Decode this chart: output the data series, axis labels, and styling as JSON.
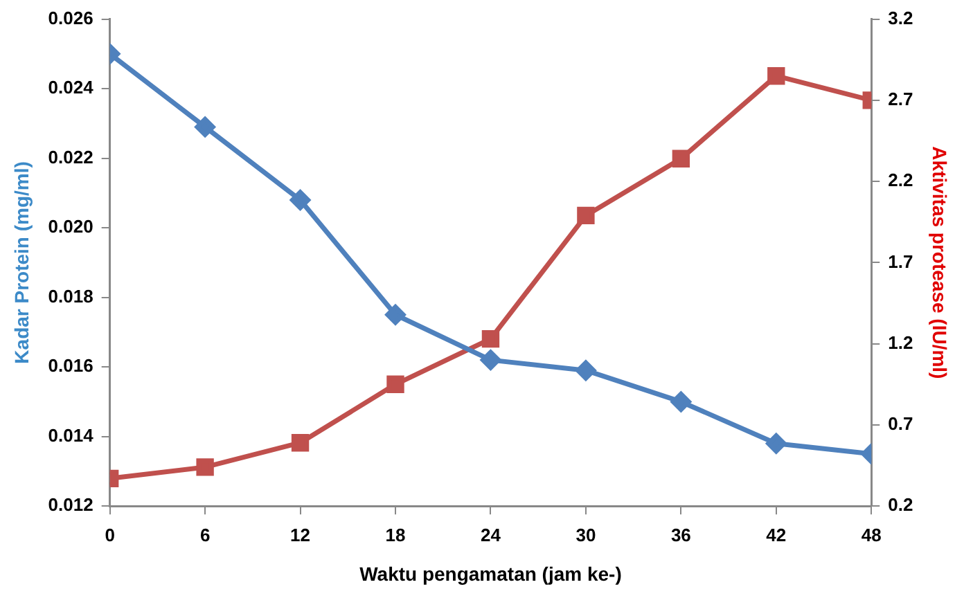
{
  "chart_data": {
    "type": "line",
    "xlabel": "Waktu pengamatan (jam ke-)",
    "ylabel": "Kadar Protein (mg/ml)",
    "y2label": "Aktivitas protease (IU/ml)",
    "x": [
      0,
      6,
      12,
      18,
      24,
      30,
      36,
      42,
      48
    ],
    "xlim": [
      0,
      48
    ],
    "xticks": [
      0,
      6,
      12,
      18,
      24,
      30,
      36,
      42,
      48
    ],
    "ylim": [
      0.012,
      0.026
    ],
    "yticks": [
      {
        "value": 0.012,
        "label": "0.012"
      },
      {
        "value": 0.014,
        "label": "0.014"
      },
      {
        "value": 0.016,
        "label": "0.016"
      },
      {
        "value": 0.018,
        "label": "0.018"
      },
      {
        "value": 0.02,
        "label": "0.020"
      },
      {
        "value": 0.022,
        "label": "0.022"
      },
      {
        "value": 0.024,
        "label": "0.024"
      },
      {
        "value": 0.026,
        "label": "0.026"
      }
    ],
    "y2lim": [
      0.2,
      3.2
    ],
    "y2ticks": [
      0.2,
      0.7,
      1.2,
      1.7,
      2.2,
      2.7,
      3.2
    ],
    "series": [
      {
        "color": "#4f81bd",
        "marker": "diamond",
        "values": [
          0.025,
          0.0229,
          0.0208,
          0.0175,
          0.0162,
          0.0159,
          0.015,
          0.0138,
          0.0135
        ]
      },
      {
        "color": "#c0504d",
        "marker": "square",
        "axis": "y2",
        "values": [
          0.37,
          0.44,
          0.59,
          0.95,
          1.23,
          1.99,
          2.34,
          2.85,
          2.7
        ]
      }
    ],
    "grid": false,
    "legend": false
  }
}
